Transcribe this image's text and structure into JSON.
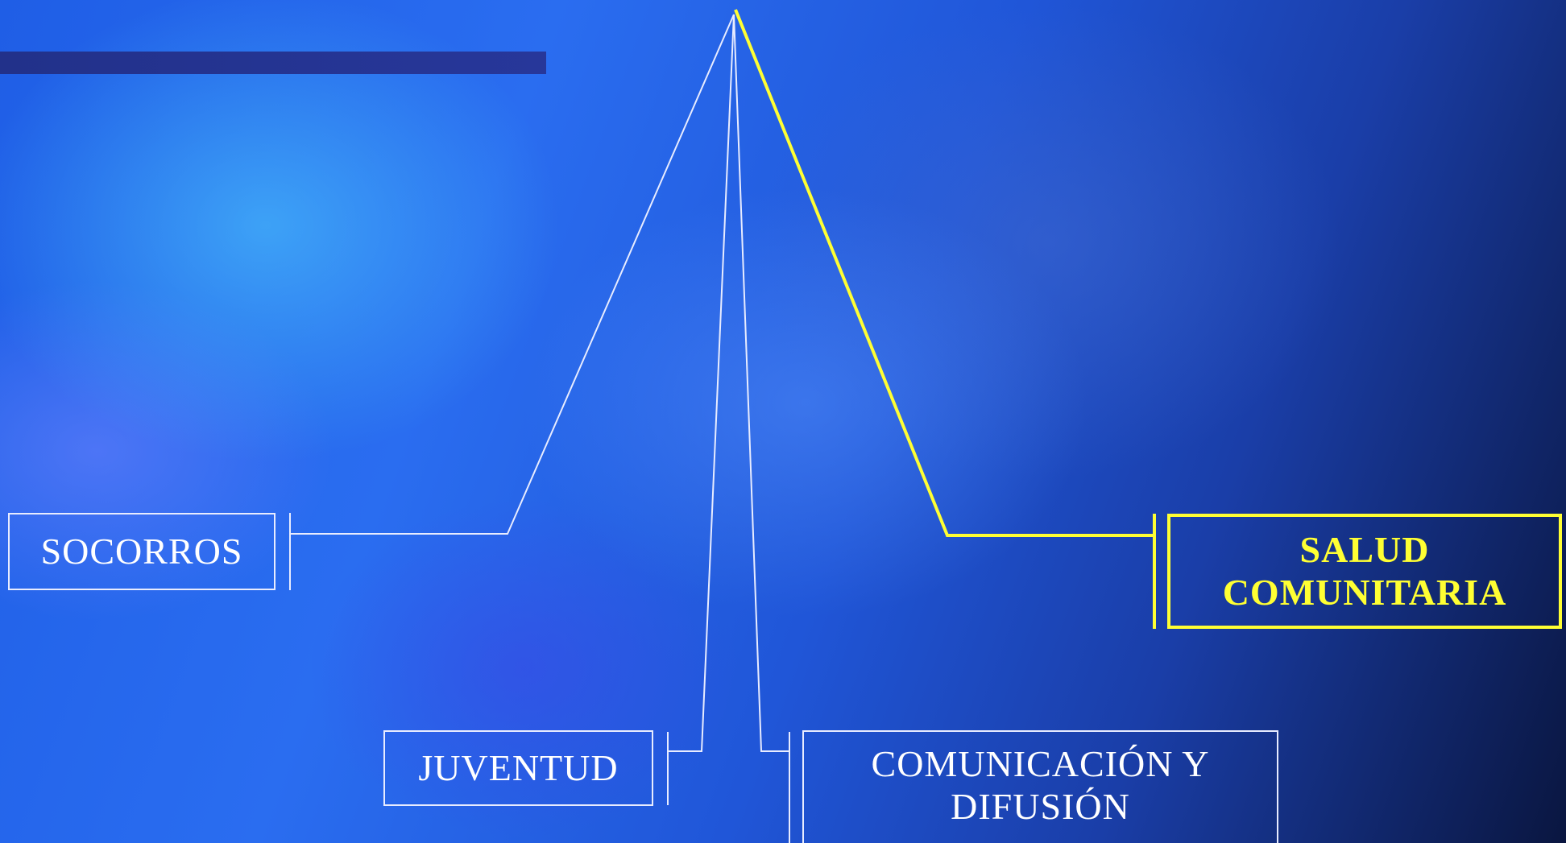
{
  "diagram": {
    "nodes": {
      "socorros": "SOCORROS",
      "juventud": "JUVENTUD",
      "comunicacion": "COMUNICACIÓN Y\nDIFUSIÓN",
      "salud": "SALUD\nCOMUNITARIA"
    },
    "colors": {
      "line": "#e8ecff",
      "highlight": "#ffff33",
      "title_bar": "#22318a"
    }
  }
}
